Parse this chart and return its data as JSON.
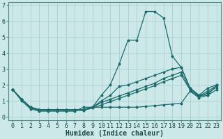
{
  "xlabel": "Humidex (Indice chaleur)",
  "background_color": "#cce8e8",
  "grid_color": "#aacfcf",
  "line_color": "#1a6b6b",
  "x_values": [
    0,
    1,
    2,
    3,
    4,
    5,
    6,
    7,
    8,
    9,
    10,
    11,
    12,
    13,
    14,
    15,
    16,
    17,
    18,
    19,
    20,
    21,
    22,
    23
  ],
  "series": [
    [
      1.7,
      1.1,
      0.6,
      0.45,
      0.45,
      0.45,
      0.45,
      0.45,
      0.45,
      0.6,
      1.35,
      2.0,
      3.3,
      4.8,
      4.8,
      6.6,
      6.6,
      6.2,
      3.8,
      3.1,
      1.8,
      1.35,
      1.35,
      2.0
    ],
    [
      1.7,
      1.1,
      0.6,
      0.45,
      0.45,
      0.45,
      0.45,
      0.45,
      0.45,
      0.6,
      1.0,
      1.35,
      1.9,
      2.0,
      2.2,
      2.4,
      2.6,
      2.8,
      3.0,
      3.1,
      1.8,
      1.35,
      1.8,
      2.0
    ],
    [
      1.7,
      1.1,
      0.6,
      0.45,
      0.45,
      0.45,
      0.45,
      0.45,
      0.45,
      0.6,
      0.9,
      1.1,
      1.3,
      1.5,
      1.7,
      1.9,
      2.1,
      2.4,
      2.6,
      2.8,
      1.75,
      1.3,
      1.6,
      1.95
    ],
    [
      1.7,
      1.1,
      0.55,
      0.4,
      0.4,
      0.4,
      0.4,
      0.4,
      0.4,
      0.55,
      0.75,
      0.95,
      1.15,
      1.35,
      1.55,
      1.75,
      1.95,
      2.2,
      2.4,
      2.6,
      1.7,
      1.25,
      1.5,
      1.85
    ],
    [
      1.7,
      1.0,
      0.5,
      0.35,
      0.35,
      0.35,
      0.35,
      0.35,
      0.6,
      0.6,
      0.6,
      0.6,
      0.6,
      0.6,
      0.6,
      0.65,
      0.7,
      0.75,
      0.8,
      0.85,
      1.6,
      1.2,
      1.35,
      1.7
    ]
  ],
  "ylim": [
    -0.2,
    7.2
  ],
  "xlim": [
    -0.5,
    23.5
  ],
  "yticks": [
    0,
    1,
    2,
    3,
    4,
    5,
    6,
    7
  ],
  "xticks": [
    0,
    1,
    2,
    3,
    4,
    5,
    6,
    7,
    8,
    9,
    10,
    11,
    12,
    13,
    14,
    15,
    16,
    17,
    18,
    19,
    20,
    21,
    22,
    23
  ],
  "xlabel_fontsize": 7,
  "tick_fontsize": 6,
  "figsize": [
    3.2,
    2.0
  ],
  "dpi": 100
}
